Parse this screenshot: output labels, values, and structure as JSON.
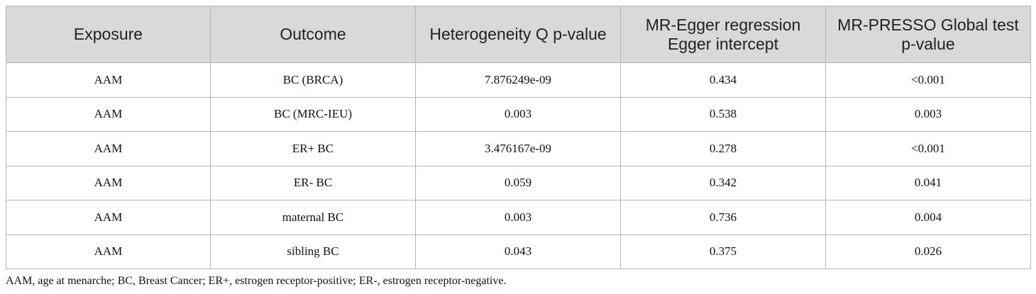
{
  "table": {
    "headers": [
      "Exposure",
      "Outcome",
      "Heterogeneity Q p-value",
      "MR-Egger regression Egger intercept",
      "MR-PRESSO Global test p-value"
    ],
    "rows": [
      [
        "AAM",
        "BC (BRCA)",
        "7.876249e-09",
        "0.434",
        "<0.001"
      ],
      [
        "AAM",
        "BC (MRC-IEU)",
        "0.003",
        "0.538",
        "0.003"
      ],
      [
        "AAM",
        "ER+ BC",
        "3.476167e-09",
        "0.278",
        "<0.001"
      ],
      [
        "AAM",
        "ER- BC",
        "0.059",
        "0.342",
        "0.041"
      ],
      [
        "AAM",
        "maternal BC",
        "0.003",
        "0.736",
        "0.004"
      ],
      [
        "AAM",
        "sibling BC",
        "0.043",
        "0.375",
        "0.026"
      ]
    ],
    "header_background": "#d9d9d9",
    "border_color": "#b5b5b5"
  },
  "footnote": "AAM, age at menarche; BC, Breast Cancer; ER+, estrogen receptor-positive; ER-, estrogen receptor-negative."
}
